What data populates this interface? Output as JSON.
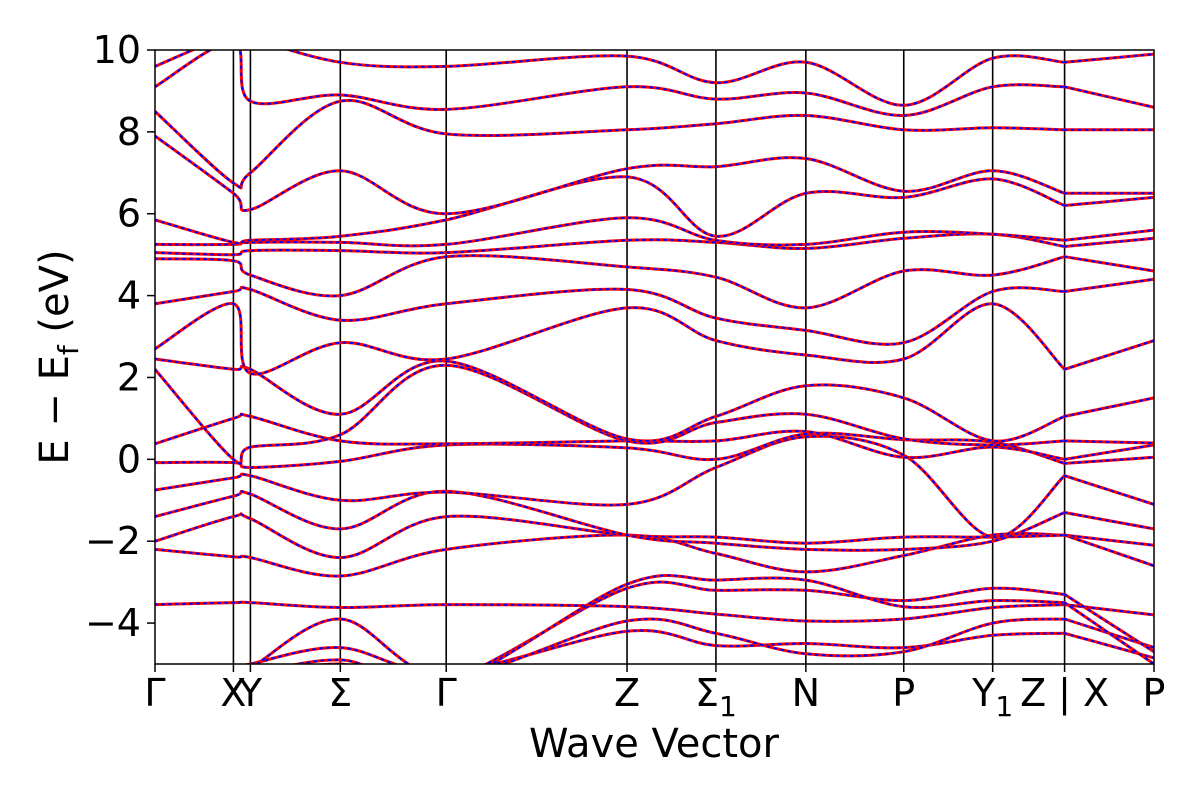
{
  "chart_data": {
    "type": "line",
    "title": "",
    "xlabel": "Wave Vector",
    "ylabel": "E − E",
    "ylabel_sub": "f",
    "ylabel_unit": "(eV)",
    "ylim": [
      -5,
      10
    ],
    "yticks": [
      {
        "value": 10,
        "label": "10"
      },
      {
        "value": 8,
        "label": "8"
      },
      {
        "value": 6,
        "label": "6"
      },
      {
        "value": 4,
        "label": "4"
      },
      {
        "value": 2,
        "label": "2"
      },
      {
        "value": 0,
        "label": "0"
      },
      {
        "value": -2,
        "label": "−2"
      },
      {
        "value": -4,
        "label": "−4"
      }
    ],
    "xlim": [
      0,
      1
    ],
    "kpoints": [
      {
        "label": "Γ",
        "sub": "",
        "x": 0.0
      },
      {
        "label": "X",
        "sub": "",
        "x": 0.0785
      },
      {
        "label": "Y",
        "sub": "",
        "x": 0.0955
      },
      {
        "label": "Σ",
        "sub": "",
        "x": 0.1855
      },
      {
        "label": "Γ",
        "sub": "",
        "x": 0.2915
      },
      {
        "label": "Z",
        "sub": "",
        "x": 0.4725
      },
      {
        "label": "Σ",
        "sub": "1",
        "x": 0.5615
      },
      {
        "label": "N",
        "sub": "",
        "x": 0.6515
      },
      {
        "label": "P",
        "sub": "",
        "x": 0.7495
      },
      {
        "label": "Y",
        "sub": "1",
        "x": 0.8385
      },
      {
        "label": "Z | X",
        "sub": "",
        "x": 0.9105
      },
      {
        "label": "P",
        "sub": "",
        "x": 1.0
      }
    ],
    "discontinuity_x": 0.9105,
    "series_styles": [
      {
        "color": "#ff0000",
        "style": "solid",
        "width": 3
      },
      {
        "color": "#0000ff",
        "style": "dotted",
        "width": 2
      }
    ],
    "bands": [
      [
        [
          0,
          -3.55
        ],
        [
          0.0785,
          -3.5
        ],
        [
          0.0955,
          -3.5
        ],
        [
          0.1855,
          -3.62
        ],
        [
          0.2915,
          -3.55
        ],
        [
          0.4725,
          -3.6
        ],
        [
          0.5615,
          -3.78
        ],
        [
          0.6515,
          -3.95
        ],
        [
          0.7495,
          -3.9
        ],
        [
          0.8385,
          -3.62
        ],
        [
          0.9105,
          -3.55
        ],
        [
          1.0,
          -3.8
        ]
      ],
      [
        [
          0,
          -2.2
        ],
        [
          0.0785,
          -2.38
        ],
        [
          0.0955,
          -2.4
        ],
        [
          0.1855,
          -2.85
        ],
        [
          0.2915,
          -2.2
        ],
        [
          0.4725,
          -1.85
        ],
        [
          0.5615,
          -2.3
        ],
        [
          0.6515,
          -2.75
        ],
        [
          0.7495,
          -2.35
        ],
        [
          0.8385,
          -1.85
        ],
        [
          0.9105,
          -1.85
        ],
        [
          1.0,
          -2.6
        ]
      ],
      [
        [
          0,
          -2.0
        ],
        [
          0.0785,
          -1.4
        ],
        [
          0.0955,
          -1.45
        ],
        [
          0.1855,
          -2.4
        ],
        [
          0.2915,
          -1.4
        ],
        [
          0.4725,
          -1.85
        ],
        [
          0.5615,
          -1.9
        ],
        [
          0.6515,
          -2.05
        ],
        [
          0.7495,
          -1.9
        ],
        [
          0.8385,
          -1.9
        ],
        [
          0.9105,
          -1.85
        ],
        [
          1.0,
          -2.1
        ]
      ],
      [
        [
          0,
          -1.4
        ],
        [
          0.0785,
          -0.9
        ],
        [
          0.0955,
          -0.85
        ],
        [
          0.1855,
          -1.7
        ],
        [
          0.2915,
          -0.78
        ],
        [
          0.4725,
          -1.85
        ],
        [
          0.5615,
          -2.05
        ],
        [
          0.6515,
          -2.2
        ],
        [
          0.7495,
          -2.2
        ],
        [
          0.8385,
          -2.0
        ],
        [
          0.9105,
          -1.3
        ],
        [
          1.0,
          -1.7
        ]
      ],
      [
        [
          0,
          -0.75
        ],
        [
          0.0785,
          -0.45
        ],
        [
          0.0955,
          -0.4
        ],
        [
          0.1855,
          -1.0
        ],
        [
          0.2915,
          -0.8
        ],
        [
          0.4725,
          -1.1
        ],
        [
          0.5615,
          -0.2
        ],
        [
          0.6515,
          0.55
        ],
        [
          0.7495,
          0.1
        ],
        [
          0.8385,
          -1.9
        ],
        [
          0.9105,
          -0.4
        ],
        [
          1.0,
          -1.1
        ]
      ],
      [
        [
          0,
          -0.08
        ],
        [
          0.0785,
          -0.08
        ],
        [
          0.0955,
          -0.2
        ],
        [
          0.1855,
          -0.05
        ],
        [
          0.2915,
          0.35
        ],
        [
          0.4725,
          0.28
        ],
        [
          0.5615,
          0.0
        ],
        [
          0.6515,
          0.62
        ],
        [
          0.7495,
          0.48
        ],
        [
          0.8385,
          0.42
        ],
        [
          0.9105,
          -0.1
        ],
        [
          1.0,
          0.05
        ]
      ],
      [
        [
          0,
          0.38
        ],
        [
          0.0785,
          1.0
        ],
        [
          0.0955,
          1.05
        ],
        [
          0.1855,
          0.45
        ],
        [
          0.2915,
          0.38
        ],
        [
          0.4725,
          0.45
        ],
        [
          0.5615,
          0.45
        ],
        [
          0.6515,
          0.68
        ],
        [
          0.7495,
          0.05
        ],
        [
          0.8385,
          0.3
        ],
        [
          0.9105,
          0.0
        ],
        [
          1.0,
          0.35
        ]
      ],
      [
        [
          0,
          2.2
        ],
        [
          0.0785,
          0.0
        ],
        [
          0.0955,
          0.3
        ],
        [
          0.1855,
          0.6
        ],
        [
          0.2915,
          2.3
        ],
        [
          0.4725,
          0.45
        ],
        [
          0.5615,
          0.9
        ],
        [
          0.6515,
          1.1
        ],
        [
          0.7495,
          0.5
        ],
        [
          0.8385,
          0.35
        ],
        [
          0.9105,
          0.45
        ],
        [
          1.0,
          0.4
        ]
      ],
      [
        [
          0,
          2.45
        ],
        [
          0.0785,
          2.2
        ],
        [
          0.0955,
          2.2
        ],
        [
          0.1855,
          1.1
        ],
        [
          0.2915,
          2.4
        ],
        [
          0.4725,
          0.5
        ],
        [
          0.5615,
          1.05
        ],
        [
          0.6515,
          1.8
        ],
        [
          0.7495,
          1.5
        ],
        [
          0.8385,
          0.45
        ],
        [
          0.9105,
          1.05
        ],
        [
          1.0,
          1.5
        ]
      ],
      [
        [
          0,
          2.7
        ],
        [
          0.0785,
          3.8
        ],
        [
          0.0955,
          2.1
        ],
        [
          0.1855,
          2.85
        ],
        [
          0.2915,
          2.45
        ],
        [
          0.4725,
          3.7
        ],
        [
          0.5615,
          2.9
        ],
        [
          0.6515,
          2.55
        ],
        [
          0.7495,
          2.45
        ],
        [
          0.8385,
          3.8
        ],
        [
          0.9105,
          2.2
        ],
        [
          1.0,
          2.9
        ]
      ],
      [
        [
          0,
          3.8
        ],
        [
          0.0785,
          4.1
        ],
        [
          0.0955,
          4.15
        ],
        [
          0.1855,
          3.4
        ],
        [
          0.2915,
          3.8
        ],
        [
          0.4725,
          4.15
        ],
        [
          0.5615,
          3.45
        ],
        [
          0.6515,
          3.15
        ],
        [
          0.7495,
          2.85
        ],
        [
          0.8385,
          4.1
        ],
        [
          0.9105,
          4.1
        ],
        [
          1.0,
          4.4
        ]
      ],
      [
        [
          0,
          4.9
        ],
        [
          0.0785,
          4.85
        ],
        [
          0.0955,
          4.5
        ],
        [
          0.1855,
          4.0
        ],
        [
          0.2915,
          4.95
        ],
        [
          0.4725,
          4.7
        ],
        [
          0.5615,
          4.45
        ],
        [
          0.6515,
          3.7
        ],
        [
          0.7495,
          4.6
        ],
        [
          0.8385,
          4.5
        ],
        [
          0.9105,
          4.95
        ],
        [
          1.0,
          4.6
        ]
      ],
      [
        [
          0,
          5.05
        ],
        [
          0.0785,
          5.0
        ],
        [
          0.0955,
          5.1
        ],
        [
          0.1855,
          5.1
        ],
        [
          0.2915,
          5.05
        ],
        [
          0.4725,
          5.35
        ],
        [
          0.5615,
          5.3
        ],
        [
          0.6515,
          5.15
        ],
        [
          0.7495,
          5.4
        ],
        [
          0.8385,
          5.5
        ],
        [
          0.9105,
          5.2
        ],
        [
          1.0,
          5.4
        ]
      ],
      [
        [
          0,
          5.25
        ],
        [
          0.0785,
          5.25
        ],
        [
          0.0955,
          5.3
        ],
        [
          0.1855,
          5.3
        ],
        [
          0.2915,
          5.25
        ],
        [
          0.4725,
          5.9
        ],
        [
          0.5615,
          5.35
        ],
        [
          0.6515,
          5.25
        ],
        [
          0.7495,
          5.55
        ],
        [
          0.8385,
          5.5
        ],
        [
          0.9105,
          5.35
        ],
        [
          1.0,
          5.6
        ]
      ],
      [
        [
          0,
          5.85
        ],
        [
          0.0785,
          5.3
        ],
        [
          0.0955,
          5.35
        ],
        [
          0.1855,
          5.45
        ],
        [
          0.2915,
          5.85
        ],
        [
          0.4725,
          6.9
        ],
        [
          0.5615,
          5.45
        ],
        [
          0.6515,
          6.5
        ],
        [
          0.7495,
          6.4
        ],
        [
          0.8385,
          6.85
        ],
        [
          0.9105,
          6.2
        ],
        [
          1.0,
          6.4
        ]
      ],
      [
        [
          0,
          7.9
        ],
        [
          0.0785,
          6.5
        ],
        [
          0.0955,
          6.1
        ],
        [
          0.1855,
          7.05
        ],
        [
          0.2915,
          6.0
        ],
        [
          0.4725,
          7.1
        ],
        [
          0.5615,
          7.15
        ],
        [
          0.6515,
          7.35
        ],
        [
          0.7495,
          6.55
        ],
        [
          0.8385,
          7.05
        ],
        [
          0.9105,
          6.5
        ],
        [
          1.0,
          6.5
        ]
      ],
      [
        [
          0,
          8.5
        ],
        [
          0.0785,
          6.75
        ],
        [
          0.0955,
          7.0
        ],
        [
          0.1855,
          8.75
        ],
        [
          0.2915,
          7.95
        ],
        [
          0.4725,
          8.05
        ],
        [
          0.5615,
          8.2
        ],
        [
          0.6515,
          8.4
        ],
        [
          0.7495,
          8.05
        ],
        [
          0.8385,
          8.1
        ],
        [
          0.9105,
          8.05
        ],
        [
          1.0,
          8.05
        ]
      ],
      [
        [
          0,
          9.1
        ],
        [
          0.0785,
          10.2
        ],
        [
          0.0955,
          8.75
        ],
        [
          0.1855,
          8.9
        ],
        [
          0.2915,
          8.55
        ],
        [
          0.4725,
          9.1
        ],
        [
          0.5615,
          8.8
        ],
        [
          0.6515,
          8.95
        ],
        [
          0.7495,
          8.4
        ],
        [
          0.8385,
          9.1
        ],
        [
          0.9105,
          9.1
        ],
        [
          1.0,
          8.6
        ]
      ],
      [
        [
          0,
          9.6
        ],
        [
          0.0785,
          10.4
        ],
        [
          0.0955,
          10.3
        ],
        [
          0.1855,
          9.7
        ],
        [
          0.2915,
          9.6
        ],
        [
          0.4725,
          9.85
        ],
        [
          0.5615,
          9.2
        ],
        [
          0.6515,
          9.7
        ],
        [
          0.7495,
          8.65
        ],
        [
          0.8385,
          9.8
        ],
        [
          0.9105,
          9.7
        ],
        [
          1.0,
          9.9
        ]
      ],
      [
        [
          0,
          -5.2
        ],
        [
          0.0785,
          -5.1
        ],
        [
          0.0955,
          -5.0
        ],
        [
          0.1855,
          -4.6
        ],
        [
          0.2915,
          -5.2
        ],
        [
          0.4725,
          -4.2
        ],
        [
          0.5615,
          -4.55
        ],
        [
          0.6515,
          -4.5
        ],
        [
          0.7495,
          -4.6
        ],
        [
          0.8385,
          -4.3
        ],
        [
          0.9105,
          -4.25
        ],
        [
          1.0,
          -4.85
        ]
      ],
      [
        [
          0,
          -5.3
        ],
        [
          0.0785,
          -5.2
        ],
        [
          0.0955,
          -5.1
        ],
        [
          0.1855,
          -3.9
        ],
        [
          0.2915,
          -5.3
        ],
        [
          0.4725,
          -3.95
        ],
        [
          0.5615,
          -4.25
        ],
        [
          0.6515,
          -4.75
        ],
        [
          0.7495,
          -4.7
        ],
        [
          0.8385,
          -4.0
        ],
        [
          0.9105,
          -3.9
        ],
        [
          1.0,
          -4.6
        ]
      ],
      [
        [
          0,
          -5.4
        ],
        [
          0.0785,
          -5.3
        ],
        [
          0.0955,
          -5.25
        ],
        [
          0.1855,
          -4.9
        ],
        [
          0.2915,
          -5.4
        ],
        [
          0.4725,
          -3.15
        ],
        [
          0.5615,
          -3.2
        ],
        [
          0.6515,
          -3.2
        ],
        [
          0.7495,
          -3.45
        ],
        [
          0.8385,
          -3.15
        ],
        [
          0.9105,
          -3.3
        ],
        [
          1.0,
          -4.7
        ]
      ],
      [
        [
          0,
          -5.5
        ],
        [
          0.0785,
          -5.4
        ],
        [
          0.0955,
          -5.35
        ],
        [
          0.1855,
          -5.0
        ],
        [
          0.2915,
          -5.5
        ],
        [
          0.4725,
          -3.05
        ],
        [
          0.5615,
          -2.95
        ],
        [
          0.6515,
          -2.95
        ],
        [
          0.7495,
          -3.6
        ],
        [
          0.8385,
          -3.45
        ],
        [
          0.9105,
          -3.5
        ],
        [
          1.0,
          -5.0
        ]
      ]
    ]
  }
}
